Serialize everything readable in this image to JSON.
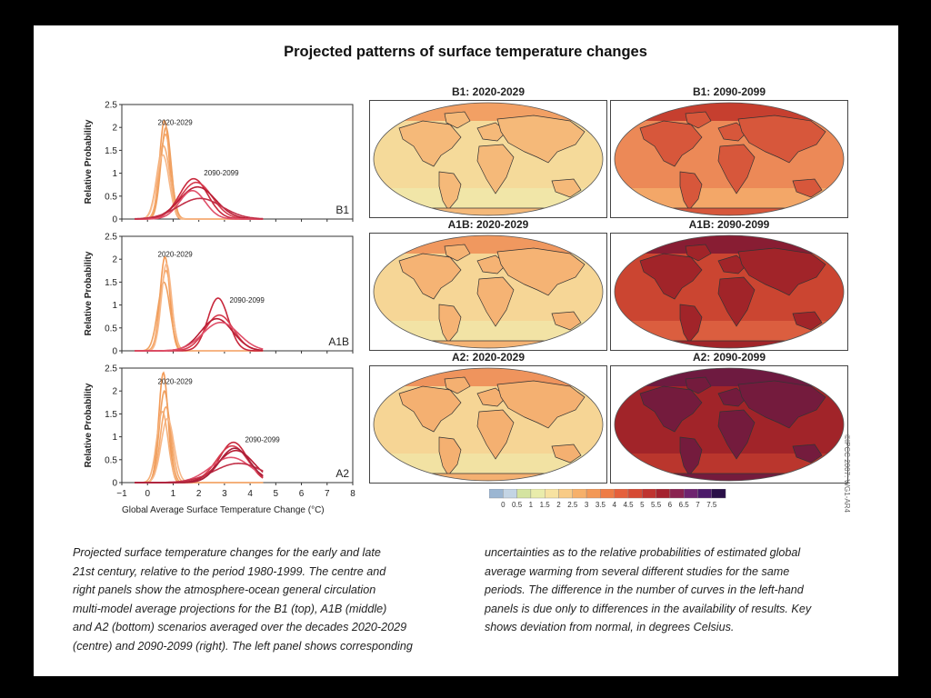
{
  "figure": {
    "title": "Projected patterns of surface temperature changes",
    "copyright": "©IPCC 2007: WG1-AR4",
    "x_axis_label": "Global Average Surface Temperature Change (°C)"
  },
  "chart_data": [
    {
      "type": "line",
      "panel": "B1",
      "scenario_label": "B1",
      "ylabel": "Relative Probability",
      "xlim": [
        -1,
        8
      ],
      "ylim": [
        0,
        2.5
      ],
      "x_ticks": [
        -1,
        0,
        1,
        2,
        3,
        4,
        5,
        6,
        7,
        8
      ],
      "y_ticks": [
        0,
        0.5,
        1,
        1.5,
        2,
        2.5
      ],
      "annotations": [
        {
          "text": "2020-2029",
          "x": 0.4,
          "y": 2.05
        },
        {
          "text": "2090-2099",
          "x": 2.2,
          "y": 0.95
        }
      ],
      "series": [
        {
          "group": "2020-2029",
          "color": "#f39a56",
          "mu": 0.66,
          "sigma": 0.19,
          "peak": 2.15
        },
        {
          "group": "2020-2029",
          "color": "#f6a96c",
          "mu": 0.7,
          "sigma": 0.22,
          "peak": 1.85
        },
        {
          "group": "2020-2029",
          "color": "#f4b07a",
          "mu": 0.62,
          "sigma": 0.25,
          "peak": 1.6
        },
        {
          "group": "2020-2029",
          "color": "#efa060",
          "mu": 0.72,
          "sigma": 0.2,
          "peak": 2.0
        },
        {
          "group": "2020-2029",
          "color": "#f7b889",
          "mu": 0.6,
          "sigma": 0.24,
          "peak": 1.4
        },
        {
          "group": "2090-2099",
          "color": "#c8283c",
          "mu": 1.8,
          "sigma": 0.55,
          "peak": 0.88
        },
        {
          "group": "2090-2099",
          "color": "#d63c4e",
          "mu": 1.9,
          "sigma": 0.62,
          "peak": 0.8
        },
        {
          "group": "2090-2099",
          "color": "#b81e34",
          "mu": 1.95,
          "sigma": 0.7,
          "peak": 0.7
        },
        {
          "group": "2090-2099",
          "color": "#e0506a",
          "mu": 1.75,
          "sigma": 0.5,
          "peak": 0.62
        },
        {
          "group": "2090-2099",
          "color": "#c23048",
          "mu": 2.05,
          "sigma": 0.85,
          "peak": 0.45
        }
      ]
    },
    {
      "type": "line",
      "panel": "A1B",
      "scenario_label": "A1B",
      "ylabel": "Relative Probability",
      "xlim": [
        -1,
        8
      ],
      "ylim": [
        0,
        2.5
      ],
      "x_ticks": [
        -1,
        0,
        1,
        2,
        3,
        4,
        5,
        6,
        7,
        8
      ],
      "y_ticks": [
        0,
        0.5,
        1,
        1.5,
        2,
        2.5
      ],
      "annotations": [
        {
          "text": "2020-2029",
          "x": 0.4,
          "y": 2.05
        },
        {
          "text": "2090-2099",
          "x": 3.2,
          "y": 1.05
        }
      ],
      "series": [
        {
          "group": "2020-2029",
          "color": "#f39a56",
          "mu": 0.68,
          "sigma": 0.19,
          "peak": 2.05
        },
        {
          "group": "2020-2029",
          "color": "#f6a96c",
          "mu": 0.72,
          "sigma": 0.22,
          "peak": 1.75
        },
        {
          "group": "2020-2029",
          "color": "#efa060",
          "mu": 0.64,
          "sigma": 0.24,
          "peak": 1.5
        },
        {
          "group": "2020-2029",
          "color": "#f7b889",
          "mu": 0.74,
          "sigma": 0.2,
          "peak": 1.9
        },
        {
          "group": "2090-2099",
          "color": "#c8283c",
          "mu": 2.75,
          "sigma": 0.4,
          "peak": 1.15
        },
        {
          "group": "2090-2099",
          "color": "#d63c4e",
          "mu": 2.8,
          "sigma": 0.55,
          "peak": 0.78
        },
        {
          "group": "2090-2099",
          "color": "#b81e34",
          "mu": 2.7,
          "sigma": 0.62,
          "peak": 0.7
        },
        {
          "group": "2090-2099",
          "color": "#e0506a",
          "mu": 2.85,
          "sigma": 0.7,
          "peak": 0.62
        }
      ]
    },
    {
      "type": "line",
      "panel": "A2",
      "scenario_label": "A2",
      "ylabel": "Relative Probability",
      "xlim": [
        -1,
        8
      ],
      "ylim": [
        0,
        2.5
      ],
      "x_ticks": [
        -1,
        0,
        1,
        2,
        3,
        4,
        5,
        6,
        7,
        8
      ],
      "y_ticks": [
        0,
        0.5,
        1,
        1.5,
        2,
        2.5
      ],
      "annotations": [
        {
          "text": "2020-2029",
          "x": 0.4,
          "y": 2.15
        },
        {
          "text": "2090-2099",
          "x": 3.8,
          "y": 0.88
        }
      ],
      "series": [
        {
          "group": "2020-2029",
          "color": "#f39a56",
          "mu": 0.62,
          "sigma": 0.18,
          "peak": 2.4
        },
        {
          "group": "2020-2029",
          "color": "#f6a96c",
          "mu": 0.72,
          "sigma": 0.22,
          "peak": 1.65
        },
        {
          "group": "2020-2029",
          "color": "#efa060",
          "mu": 0.66,
          "sigma": 0.2,
          "peak": 2.0
        },
        {
          "group": "2020-2029",
          "color": "#f7b889",
          "mu": 0.78,
          "sigma": 0.25,
          "peak": 1.4
        },
        {
          "group": "2020-2029",
          "color": "#f4b07a",
          "mu": 0.58,
          "sigma": 0.22,
          "peak": 1.55
        },
        {
          "group": "2090-2099",
          "color": "#c8283c",
          "mu": 3.35,
          "sigma": 0.55,
          "peak": 0.88
        },
        {
          "group": "2090-2099",
          "color": "#d63c4e",
          "mu": 3.3,
          "sigma": 0.62,
          "peak": 0.8
        },
        {
          "group": "2090-2099",
          "color": "#b81e34",
          "mu": 3.45,
          "sigma": 0.7,
          "peak": 0.7
        },
        {
          "group": "2090-2099",
          "color": "#e0506a",
          "mu": 3.25,
          "sigma": 0.8,
          "peak": 0.55
        },
        {
          "group": "2090-2099",
          "color": "#c23048",
          "mu": 3.55,
          "sigma": 0.95,
          "peak": 0.42
        },
        {
          "group": "2090-2099",
          "color": "#a8203a",
          "mu": 3.4,
          "sigma": 0.6,
          "peak": 0.75
        }
      ]
    }
  ],
  "maps": [
    {
      "title": "B1: 2020-2029",
      "level": 0.22
    },
    {
      "title": "B1: 2090-2099",
      "level": 0.5
    },
    {
      "title": "A1B: 2020-2029",
      "level": 0.24
    },
    {
      "title": "A1B: 2090-2099",
      "level": 0.7
    },
    {
      "title": "A2: 2020-2029",
      "level": 0.25
    },
    {
      "title": "A2: 2090-2099",
      "level": 0.84
    }
  ],
  "legend": {
    "title": "",
    "labels": [
      "0",
      "0.5",
      "1",
      "1.5",
      "2",
      "2.5",
      "3",
      "3.5",
      "4",
      "4.5",
      "5",
      "5.5",
      "6",
      "6.5",
      "7",
      "7.5"
    ],
    "colors": [
      "#9bb6d2",
      "#c3d4e4",
      "#d4e3a0",
      "#e9ecab",
      "#f7e2a1",
      "#f8cb86",
      "#f6b06a",
      "#f39856",
      "#ee7c46",
      "#e5603c",
      "#d64a34",
      "#bf3430",
      "#a4222e",
      "#8a2350",
      "#6e2470",
      "#4c1a6a",
      "#2a1048"
    ]
  },
  "caption": {
    "left": [
      "Projected surface temperature changes for the early and late",
      "21st century, relative to the period 1980-1999. The centre and",
      "right panels show the atmosphere-ocean general circulation",
      "multi-model average projections for the B1 (top), A1B (middle)",
      "and A2 (bottom) scenarios averaged over the decades 2020-2029",
      "(centre) and 2090-2099 (right). The left panel shows corresponding"
    ],
    "right": [
      "uncertainties as to the relative probabilities of estimated global",
      "average warming from several different studies for the same",
      "periods. The difference in the number of curves in the left-hand",
      "panels is due only to differences in the availability of results. Key",
      "shows deviation from normal, in degrees Celsius."
    ]
  }
}
